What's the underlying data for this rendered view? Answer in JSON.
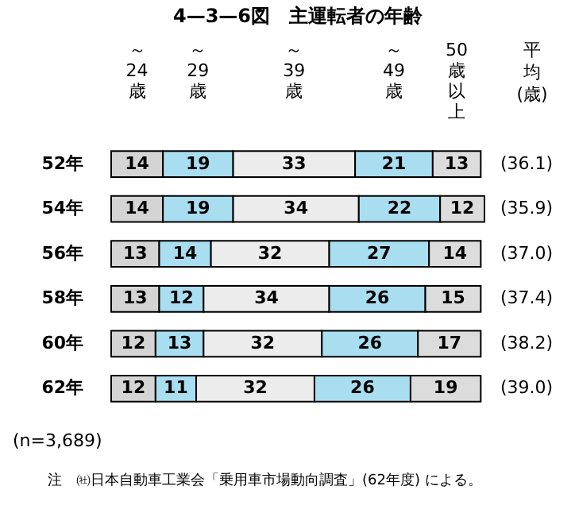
{
  "chart_data": {
    "type": "bar",
    "orientation": "horizontal",
    "stacked": true,
    "data_labels": true,
    "title": "4—3—6図　主運転者の年齢",
    "categories": [
      "52年",
      "54年",
      "56年",
      "58年",
      "60年",
      "62年"
    ],
    "series": [
      {
        "name": "～24歳",
        "color": "#d4d4d4",
        "values": [
          14,
          14,
          13,
          13,
          12,
          12
        ]
      },
      {
        "name": "～29歳",
        "color": "#a8def0",
        "values": [
          19,
          19,
          14,
          12,
          13,
          11
        ]
      },
      {
        "name": "～39歳",
        "color": "#ececec",
        "values": [
          33,
          34,
          32,
          34,
          32,
          32
        ]
      },
      {
        "name": "～49歳",
        "color": "#a8def0",
        "values": [
          21,
          22,
          27,
          26,
          26,
          26
        ]
      },
      {
        "name": "50歳以上",
        "color": "#dcdcdc",
        "values": [
          13,
          12,
          14,
          15,
          17,
          19
        ]
      }
    ],
    "annotations": [
      "平均(歳)",
      "(36.1)",
      "(35.9)",
      "(37.0)",
      "(37.4)",
      "(38.2)",
      "(39.0)",
      "(n=3,689)",
      "注　㈳日本自動車工業会「乗用車市場動向調査」(62年度) による。"
    ]
  }
}
